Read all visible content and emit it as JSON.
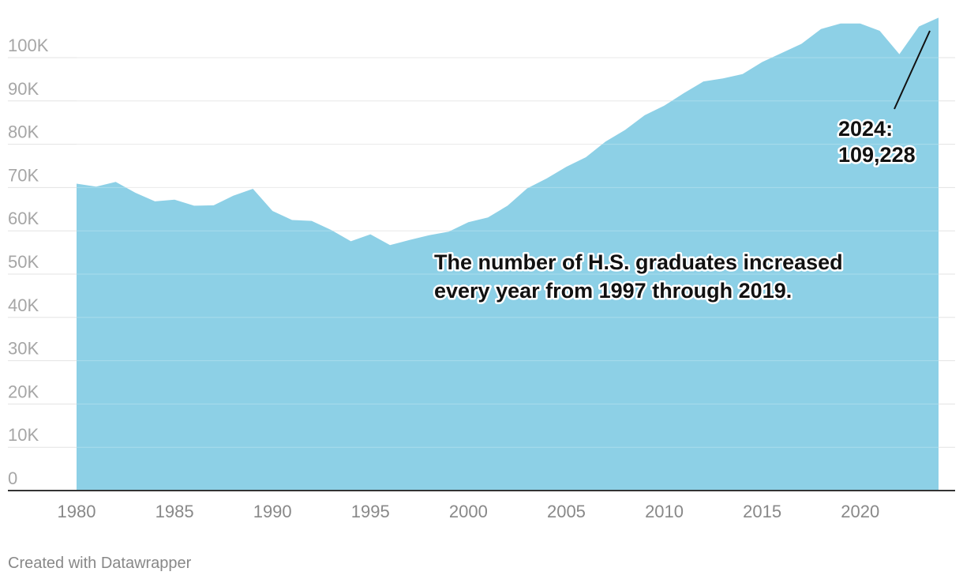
{
  "chart_data": {
    "type": "area",
    "x": [
      1980,
      1981,
      1982,
      1983,
      1984,
      1985,
      1986,
      1987,
      1988,
      1989,
      1990,
      1991,
      1992,
      1993,
      1994,
      1995,
      1996,
      1997,
      1998,
      1999,
      2000,
      2001,
      2002,
      2003,
      2004,
      2005,
      2006,
      2007,
      2008,
      2009,
      2010,
      2011,
      2012,
      2013,
      2014,
      2015,
      2016,
      2017,
      2018,
      2019,
      2020,
      2021,
      2022,
      2023,
      2024
    ],
    "values": [
      70900,
      70200,
      71300,
      68800,
      66800,
      67200,
      65800,
      65900,
      68100,
      69700,
      64600,
      62500,
      62300,
      60200,
      57600,
      59200,
      56700,
      57900,
      59000,
      59800,
      62000,
      63100,
      65800,
      69800,
      72100,
      74800,
      77000,
      80600,
      83300,
      86700,
      88900,
      91800,
      94500,
      95200,
      96200,
      99000,
      101100,
      103200,
      106600,
      107900,
      107900,
      106200,
      100800,
      107200,
      109228
    ],
    "xlim": [
      1980,
      2024
    ],
    "ylim": [
      0,
      110000
    ],
    "y_ticks": [
      0,
      10000,
      20000,
      30000,
      40000,
      50000,
      60000,
      70000,
      80000,
      90000,
      100000
    ],
    "y_tick_labels": [
      "0",
      "10K",
      "20K",
      "30K",
      "40K",
      "50K",
      "60K",
      "70K",
      "80K",
      "90K",
      "100K"
    ],
    "x_ticks": [
      1980,
      1985,
      1990,
      1995,
      2000,
      2005,
      2010,
      2015,
      2020
    ],
    "x_tick_labels": [
      "1980",
      "1985",
      "1990",
      "1995",
      "2000",
      "2005",
      "2010",
      "2015",
      "2020"
    ],
    "grid": true,
    "colors": {
      "area": "#8dd0e6",
      "grid": "#e3e3e3",
      "baseline": "#333333",
      "annotation_line": "#111111"
    },
    "annotations": [
      {
        "lines": [
          "The number of H.S. graduates increased",
          "every year from 1997 through 2019."
        ]
      },
      {
        "lines": [
          "2024:",
          "109,228"
        ],
        "target_x": 2024,
        "target_y": 109228
      }
    ]
  },
  "footer": {
    "credit": "Created with Datawrapper"
  }
}
